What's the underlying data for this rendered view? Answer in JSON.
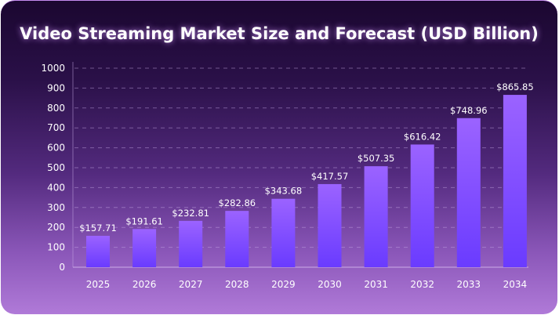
{
  "chart_data": {
    "type": "bar",
    "title": "Video Streaming Market Size and Forecast (USD Billion)",
    "categories": [
      "2025",
      "2026",
      "2027",
      "2028",
      "2029",
      "2030",
      "2031",
      "2032",
      "2033",
      "2034"
    ],
    "values": [
      157.71,
      191.61,
      232.81,
      282.86,
      343.68,
      417.57,
      507.35,
      616.42,
      748.96,
      865.85
    ],
    "data_labels": [
      "$157.71",
      "$191.61",
      "$232.81",
      "$282.86",
      "$343.68",
      "$417.57",
      "$507.35",
      "$616.42",
      "$748.96",
      "$865.85"
    ],
    "xlabel": "",
    "ylabel": "",
    "ylim": [
      0,
      1000
    ],
    "yticks": [
      0,
      100,
      200,
      300,
      400,
      500,
      600,
      700,
      800,
      900,
      1000
    ],
    "grid": true,
    "bar_color_top": "#9b63ff",
    "bar_color_bottom": "#6a3bff"
  }
}
